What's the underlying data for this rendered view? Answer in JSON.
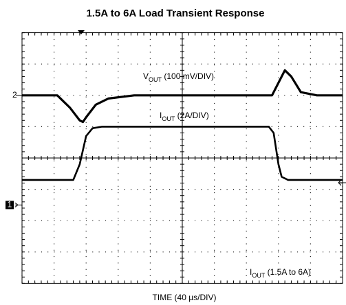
{
  "chart_data": {
    "type": "line",
    "title": "1.5A to 6A Load Transient Response",
    "xlabel": "TIME (40 µs/DIV)",
    "xlim": [
      -5,
      5
    ],
    "ylim": [
      -4,
      4
    ],
    "xticks": [
      -5,
      -4,
      -3,
      -2,
      -1,
      0,
      1,
      2,
      3,
      4,
      5
    ],
    "yticks": [
      -4,
      -3,
      -2,
      -1,
      0,
      1,
      2,
      3,
      4
    ],
    "grid": true,
    "series": [
      {
        "color": "#000000",
        "x": [
          -5,
          -3.9,
          -3.5,
          -3.2,
          -3.1,
          -3.0,
          -2.7,
          -2.3,
          -1.5,
          2.8,
          3.0,
          3.2,
          3.4,
          3.7,
          4.2,
          5
        ],
        "values": [
          2,
          2,
          1.6,
          1.2,
          1.15,
          1.3,
          1.7,
          1.9,
          2,
          2,
          2.4,
          2.8,
          2.6,
          2.1,
          2,
          2
        ]
      },
      {
        "color": "#000000",
        "x": [
          -5,
          -3.4,
          -3.2,
          -3.0,
          -2.8,
          -2.5,
          -2.0,
          2.7,
          2.85,
          3.0,
          3.1,
          3.3,
          3.6,
          5
        ],
        "values": [
          -0.7,
          -0.7,
          -0.2,
          0.7,
          0.95,
          1.0,
          1.0,
          1.0,
          0.8,
          -0.2,
          -0.6,
          -0.7,
          -0.7,
          -0.7
        ]
      }
    ],
    "annotations": [
      {
        "parts": [
          "V",
          "OUT",
          " (100 mV/DIV)"
        ]
      },
      {
        "parts": [
          "I",
          "OUT",
          " (2A/DIV)"
        ]
      },
      {
        "parts": [
          "I",
          "OUT",
          " (1.5A to 6A)"
        ]
      }
    ],
    "channel_markers": [
      "2",
      "1"
    ]
  }
}
